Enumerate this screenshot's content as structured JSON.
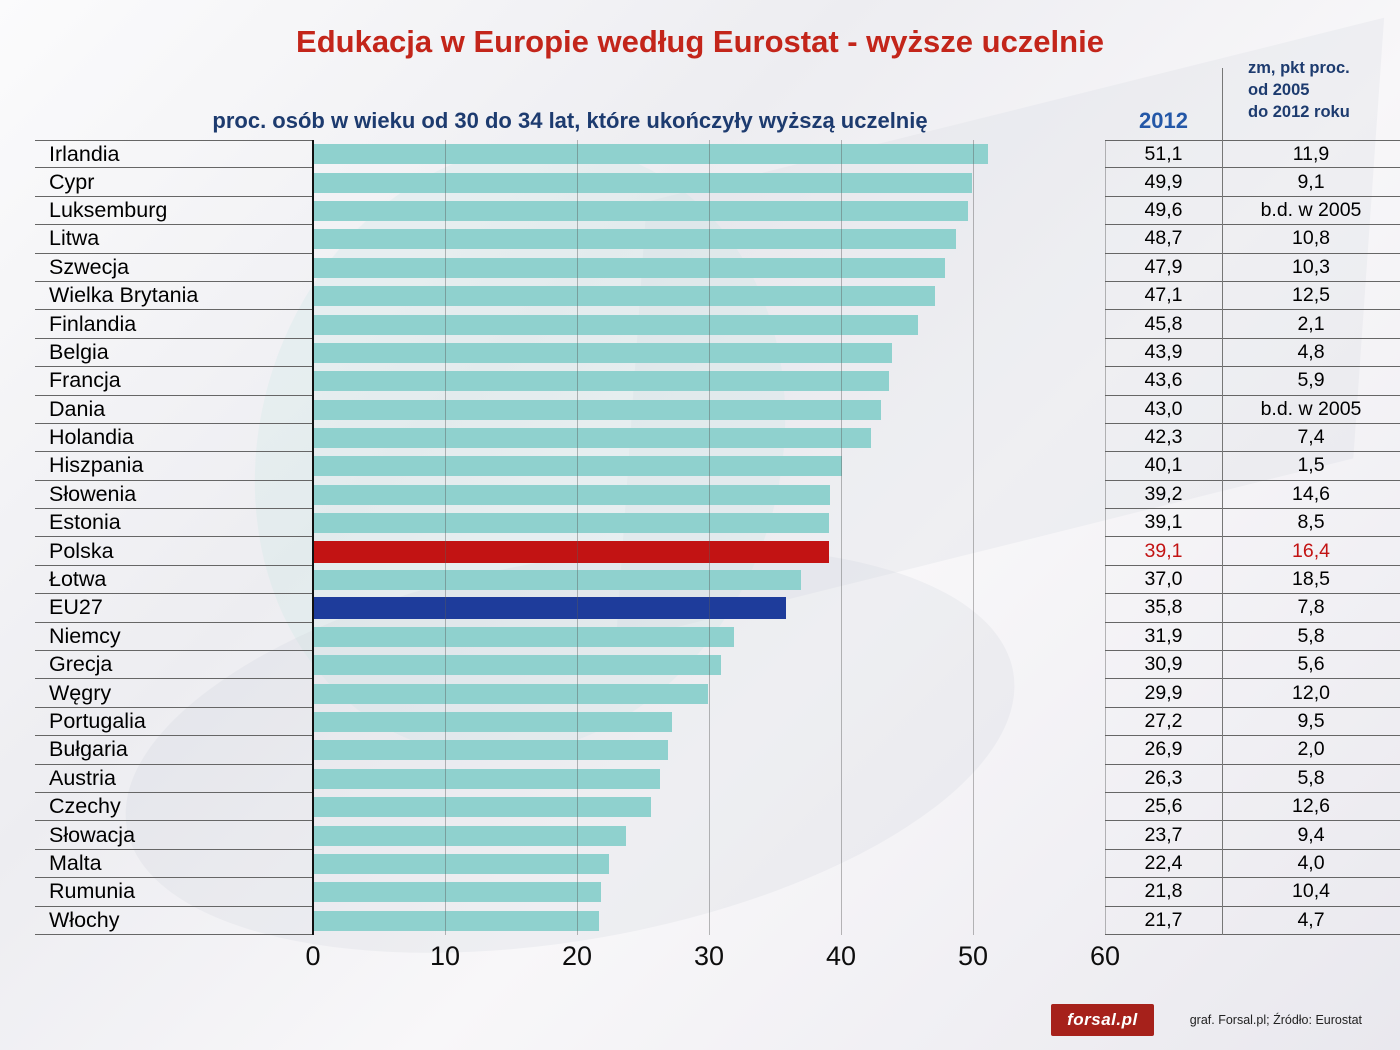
{
  "title": "Edukacja w Europie według Eurostat - wyższe uczelnie",
  "subtitle": "proc. osób w wieku od 30 do 34 lat, które ukończyły wyższą uczelnię",
  "year_label": "2012",
  "change_header": "zm, pkt proc.\nod 2005\ndo 2012 roku",
  "footer": {
    "logo": "forsal.pl",
    "credit": "graf. Forsal.pl; Źródło: Eurostat"
  },
  "colors": {
    "bar": "#8fd1ce",
    "poland": "#c21313",
    "eu": "#1e3c9b",
    "poland_text": "#c21313",
    "title": "#c3251a",
    "heading_blue": "#1d3b6f"
  },
  "chart_data": {
    "type": "bar",
    "orientation": "horizontal",
    "title": "Edukacja w Europie według Eurostat - wyższe uczelnie",
    "xlabel": "",
    "ylabel": "",
    "xlim": [
      0,
      60
    ],
    "x_ticks": [
      0,
      10,
      20,
      30,
      40,
      50,
      60
    ],
    "grid": true,
    "rows": [
      {
        "label": "Irlandia",
        "value": 51.1,
        "value_text": "51,1",
        "change": "11,9",
        "highlight": null
      },
      {
        "label": "Cypr",
        "value": 49.9,
        "value_text": "49,9",
        "change": "9,1",
        "highlight": null
      },
      {
        "label": "Luksemburg",
        "value": 49.6,
        "value_text": "49,6",
        "change": "b.d. w 2005",
        "highlight": null
      },
      {
        "label": "Litwa",
        "value": 48.7,
        "value_text": "48,7",
        "change": "10,8",
        "highlight": null
      },
      {
        "label": "Szwecja",
        "value": 47.9,
        "value_text": "47,9",
        "change": "10,3",
        "highlight": null
      },
      {
        "label": "Wielka Brytania",
        "value": 47.1,
        "value_text": "47,1",
        "change": "12,5",
        "highlight": null
      },
      {
        "label": "Finlandia",
        "value": 45.8,
        "value_text": "45,8",
        "change": "2,1",
        "highlight": null
      },
      {
        "label": "Belgia",
        "value": 43.9,
        "value_text": "43,9",
        "change": "4,8",
        "highlight": null
      },
      {
        "label": "Francja",
        "value": 43.6,
        "value_text": "43,6",
        "change": "5,9",
        "highlight": null
      },
      {
        "label": "Dania",
        "value": 43.0,
        "value_text": "43,0",
        "change": "b.d. w 2005",
        "highlight": null
      },
      {
        "label": "Holandia",
        "value": 42.3,
        "value_text": "42,3",
        "change": "7,4",
        "highlight": null
      },
      {
        "label": "Hiszpania",
        "value": 40.1,
        "value_text": "40,1",
        "change": "1,5",
        "highlight": null
      },
      {
        "label": "Słowenia",
        "value": 39.2,
        "value_text": "39,2",
        "change": "14,6",
        "highlight": null
      },
      {
        "label": "Estonia",
        "value": 39.1,
        "value_text": "39,1",
        "change": "8,5",
        "highlight": null
      },
      {
        "label": "Polska",
        "value": 39.1,
        "value_text": "39,1",
        "change": "16,4",
        "highlight": "poland"
      },
      {
        "label": "Łotwa",
        "value": 37.0,
        "value_text": "37,0",
        "change": "18,5",
        "highlight": null
      },
      {
        "label": "EU27",
        "value": 35.8,
        "value_text": "35,8",
        "change": "7,8",
        "highlight": "eu"
      },
      {
        "label": "Niemcy",
        "value": 31.9,
        "value_text": "31,9",
        "change": "5,8",
        "highlight": null
      },
      {
        "label": "Grecja",
        "value": 30.9,
        "value_text": "30,9",
        "change": "5,6",
        "highlight": null
      },
      {
        "label": "Węgry",
        "value": 29.9,
        "value_text": "29,9",
        "change": "12,0",
        "highlight": null
      },
      {
        "label": "Portugalia",
        "value": 27.2,
        "value_text": "27,2",
        "change": "9,5",
        "highlight": null
      },
      {
        "label": "Bułgaria",
        "value": 26.9,
        "value_text": "26,9",
        "change": "2,0",
        "highlight": null
      },
      {
        "label": "Austria",
        "value": 26.3,
        "value_text": "26,3",
        "change": "5,8",
        "highlight": null
      },
      {
        "label": "Czechy",
        "value": 25.6,
        "value_text": "25,6",
        "change": "12,6",
        "highlight": null
      },
      {
        "label": "Słowacja",
        "value": 23.7,
        "value_text": "23,7",
        "change": "9,4",
        "highlight": null
      },
      {
        "label": "Malta",
        "value": 22.4,
        "value_text": "22,4",
        "change": "4,0",
        "highlight": null
      },
      {
        "label": "Rumunia",
        "value": 21.8,
        "value_text": "21,8",
        "change": "10,4",
        "highlight": null
      },
      {
        "label": "Włochy",
        "value": 21.7,
        "value_text": "21,7",
        "change": "4,7",
        "highlight": null
      }
    ]
  }
}
